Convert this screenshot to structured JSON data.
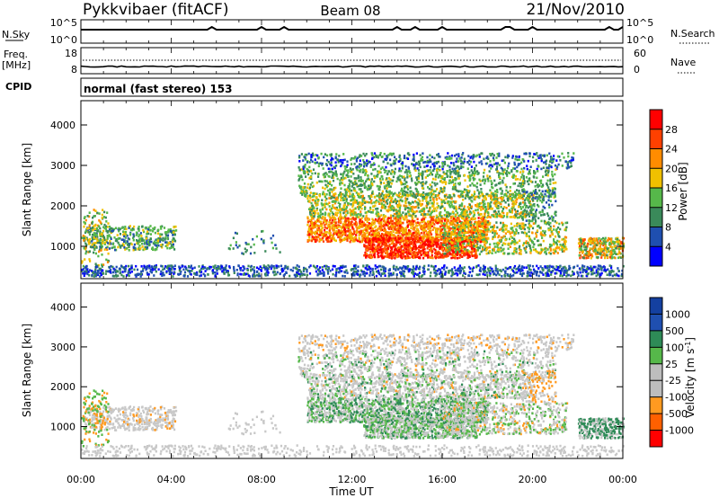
{
  "header": {
    "station": "Pykkvibaer (fitACF)",
    "beam": "Beam 08",
    "date": "21/Nov/2010"
  },
  "sky_panel": {
    "label": "N.Sky",
    "left_ticks": [
      "10^5",
      "10^0"
    ],
    "right_ticks": [
      "10^5",
      "10^0"
    ],
    "right_label": "N.Search"
  },
  "freq_panel": {
    "label_top": "Freq.",
    "label_unit": "[MHz]",
    "left_ticks": [
      "18",
      "8"
    ],
    "right_ticks": [
      "60",
      "0"
    ],
    "right_label": "Nave"
  },
  "cpid": {
    "label": "CPID",
    "text": "normal (fast stereo) 153"
  },
  "x_axis": {
    "label": "Time UT",
    "ticks": [
      "00:00",
      "04:00",
      "08:00",
      "12:00",
      "16:00",
      "20:00",
      "00:00"
    ]
  },
  "colors": {
    "power": [
      "#0000ff",
      "#1f4fb0",
      "#3a8a5a",
      "#56b84a",
      "#f0c000",
      "#ff8c00",
      "#ff4000",
      "#ff0000"
    ],
    "velocity": [
      "#ff0000",
      "#ff6000",
      "#ff9a20",
      "#bdbdbd",
      "#bdbdbd",
      "#56b84a",
      "#2e8b57",
      "#1f4fb0",
      "#1440a0"
    ],
    "ground_scatter": "#c8c8c8"
  },
  "chart_data": [
    {
      "type": "heatmap",
      "name": "power",
      "ylabel": "Slant Range [km]",
      "yticks": [
        "1000",
        "2000",
        "3000",
        "4000"
      ],
      "ylim": [
        200,
        4600
      ],
      "xlim": [
        0,
        24
      ],
      "colorbar": {
        "label": "Power [dB]",
        "ticks": [
          "4",
          "8",
          "12",
          "16",
          "20",
          "24",
          "28"
        ],
        "range": [
          0,
          32
        ]
      }
    },
    {
      "type": "heatmap",
      "name": "velocity",
      "ylabel": "Slant Range [km]",
      "yticks": [
        "1000",
        "2000",
        "3000",
        "4000"
      ],
      "ylim": [
        200,
        4600
      ],
      "xlim": [
        0,
        24
      ],
      "colorbar": {
        "label": "Velocity [m s^-1]",
        "ticks": [
          "1000",
          "500",
          "100",
          "25",
          "-25",
          "-100",
          "-500",
          "-1000"
        ]
      }
    }
  ]
}
